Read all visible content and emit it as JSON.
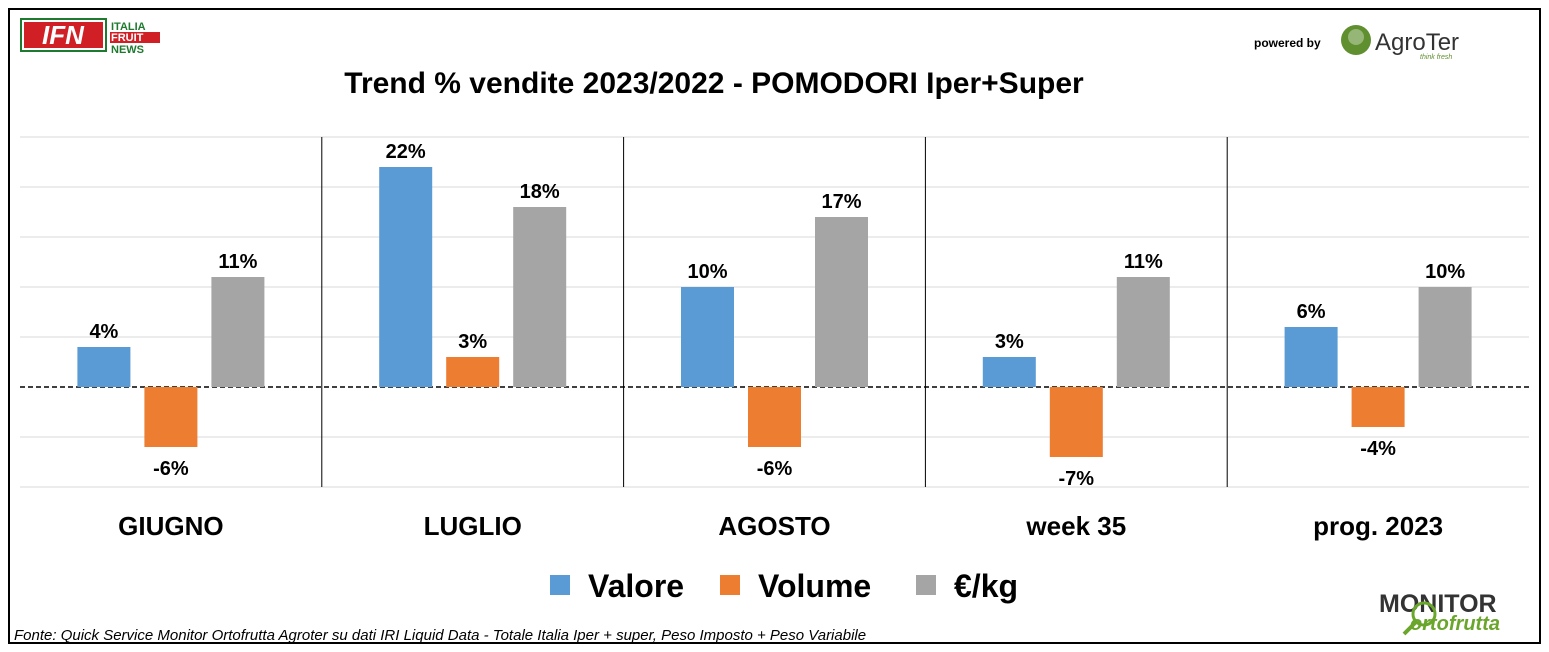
{
  "logos": {
    "ifn": {
      "mark": "IFN",
      "line1": "ITALIA",
      "line2": "FRUIT",
      "line3": "NEWS"
    },
    "agroter": {
      "powered_by": "powered by",
      "name": "AgroTer",
      "tagline": "think fresh"
    },
    "monitor": {
      "line1": "MONITOR",
      "line2": "ortofrutta"
    }
  },
  "footnote": "Fonte: Quick Service Monitor Ortofrutta Agroter su dati IRI Liquid Data - Totale Italia Iper + super, Peso Imposto + Peso Variabile",
  "colors": {
    "valore": "#5B9BD5",
    "volume": "#ED7D31",
    "eurokg": "#A5A5A5"
  },
  "chart_data": {
    "type": "bar",
    "title": "Trend % vendite 2023/2022 - POMODORI Iper+Super",
    "categories": [
      "GIUGNO",
      "LUGLIO",
      "AGOSTO",
      "week 35",
      "prog. 2023"
    ],
    "series": [
      {
        "name": "Valore",
        "values": [
          4,
          22,
          10,
          3,
          6
        ],
        "labels": [
          "4%",
          "22%",
          "10%",
          "3%",
          "6%"
        ]
      },
      {
        "name": "Volume",
        "values": [
          -6,
          3,
          -6,
          -7,
          -4
        ],
        "labels": [
          "-6%",
          "3%",
          "-6%",
          "-7%",
          "-4%"
        ]
      },
      {
        "name": "€/kg",
        "values": [
          11,
          18,
          17,
          11,
          10
        ],
        "labels": [
          "11%",
          "18%",
          "17%",
          "11%",
          "10%"
        ]
      }
    ],
    "ylim": [
      -10,
      25
    ],
    "grid": true,
    "legend_position": "bottom"
  }
}
